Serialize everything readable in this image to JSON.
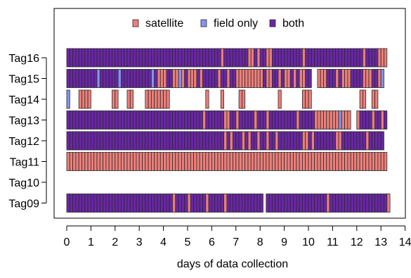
{
  "chart_data": {
    "type": "bar",
    "xlabel": "days of data collection",
    "ylabel": "",
    "xlim": [
      0,
      14
    ],
    "x_ticks": [
      0,
      1,
      2,
      3,
      4,
      5,
      6,
      7,
      8,
      9,
      10,
      11,
      12,
      13,
      14
    ],
    "tags": [
      "Tag16",
      "Tag15",
      "Tag14",
      "Tag13",
      "Tag12",
      "Tag11",
      "Tag10",
      "Tag09"
    ],
    "legend": {
      "position": "top",
      "entries": [
        {
          "name": "satellite",
          "color": "#EC7F7A"
        },
        {
          "name": "field only",
          "color": "#8294EE"
        },
        {
          "name": "both",
          "color": "#6A26A6"
        }
      ]
    },
    "colors": {
      "both": "#6A26A6",
      "satellite": "#EC7F7A",
      "field": "#8294EE",
      "border": "#2a2a2a"
    },
    "bin_width_days": 0.125,
    "series": [
      {
        "tag": "Tag16",
        "intervals": [
          [
            0,
            13.25
          ]
        ],
        "satellite_bins": [
          6.375,
          7.5,
          7.625,
          7.875,
          8.25,
          8.375,
          9.75,
          12.25,
          12.875,
          13.0,
          13.125
        ],
        "field_bins": []
      },
      {
        "tag": "Tag15",
        "intervals": [
          [
            0,
            10.125
          ],
          [
            10.375,
            13.125
          ]
        ],
        "satellite_bins": [
          3.75,
          3.875,
          4.0,
          4.375,
          4.5,
          4.75,
          5.0,
          5.125,
          5.25,
          5.5,
          6.25,
          6.625,
          7.0,
          7.125,
          7.25,
          7.375,
          7.5,
          7.625,
          7.75,
          7.875,
          8.0,
          8.25,
          8.375,
          8.75,
          9.0,
          9.125,
          9.375,
          9.625,
          9.75,
          10.375,
          10.5,
          10.625,
          11.125,
          11.375,
          11.5,
          11.625,
          12.25,
          12.375,
          12.5,
          12.875
        ],
        "field_bins": [
          1.25,
          2.125,
          3.5,
          4.625,
          13.0
        ]
      },
      {
        "tag": "Tag14",
        "intervals": [
          [
            0,
            0.125
          ],
          [
            0.5,
            1.0
          ],
          [
            1.875,
            2.125
          ],
          [
            2.5,
            2.75
          ],
          [
            3.25,
            4.25
          ],
          [
            5.75,
            5.875
          ],
          [
            6.375,
            6.5
          ],
          [
            7.125,
            7.375
          ],
          [
            8.75,
            8.875
          ],
          [
            9.75,
            10.125
          ],
          [
            12.125,
            12.375
          ],
          [
            12.625,
            12.875
          ]
        ],
        "satellite_bins": [
          0.5,
          0.625,
          0.75,
          0.875,
          1.875,
          2.0,
          2.5,
          2.625,
          3.25,
          3.375,
          3.5,
          3.625,
          3.75,
          3.875,
          4.0,
          4.125,
          5.75,
          6.375,
          7.125,
          7.25,
          8.75,
          9.75,
          9.875,
          10.0,
          12.125,
          12.25,
          12.625,
          12.75
        ],
        "field_bins": [
          0.0
        ]
      },
      {
        "tag": "Tag13",
        "intervals": [
          [
            0,
            11.75
          ],
          [
            12.0,
            13.25
          ]
        ],
        "satellite_bins": [
          5.625,
          6.5,
          6.625,
          7.0,
          7.75,
          8.25,
          9.5,
          10.25,
          10.375,
          10.5,
          10.625,
          10.75,
          10.875,
          11.0,
          11.125,
          11.375,
          11.5,
          11.625,
          12.0,
          12.625,
          13.0
        ],
        "field_bins": [
          11.25
        ]
      },
      {
        "tag": "Tag12",
        "intervals": [
          [
            0,
            13.125
          ]
        ],
        "satellite_bins": [
          6.5,
          6.75,
          7.25,
          7.5,
          7.875,
          8.25,
          8.625,
          9.75,
          9.875,
          10.125,
          11.125,
          11.25,
          12.375
        ],
        "field_bins": []
      },
      {
        "tag": "Tag11",
        "intervals": [
          [
            0,
            13.25
          ]
        ],
        "satellite_bins": "all",
        "field_bins": []
      },
      {
        "tag": "Tag10",
        "intervals": [],
        "satellite_bins": [],
        "field_bins": []
      },
      {
        "tag": "Tag09",
        "intervals": [
          [
            0,
            8.125
          ],
          [
            8.25,
            13.375
          ]
        ],
        "satellite_bins": [
          4.375,
          5.0,
          5.75,
          6.5,
          10.75,
          13.25
        ],
        "field_bins": []
      }
    ]
  }
}
